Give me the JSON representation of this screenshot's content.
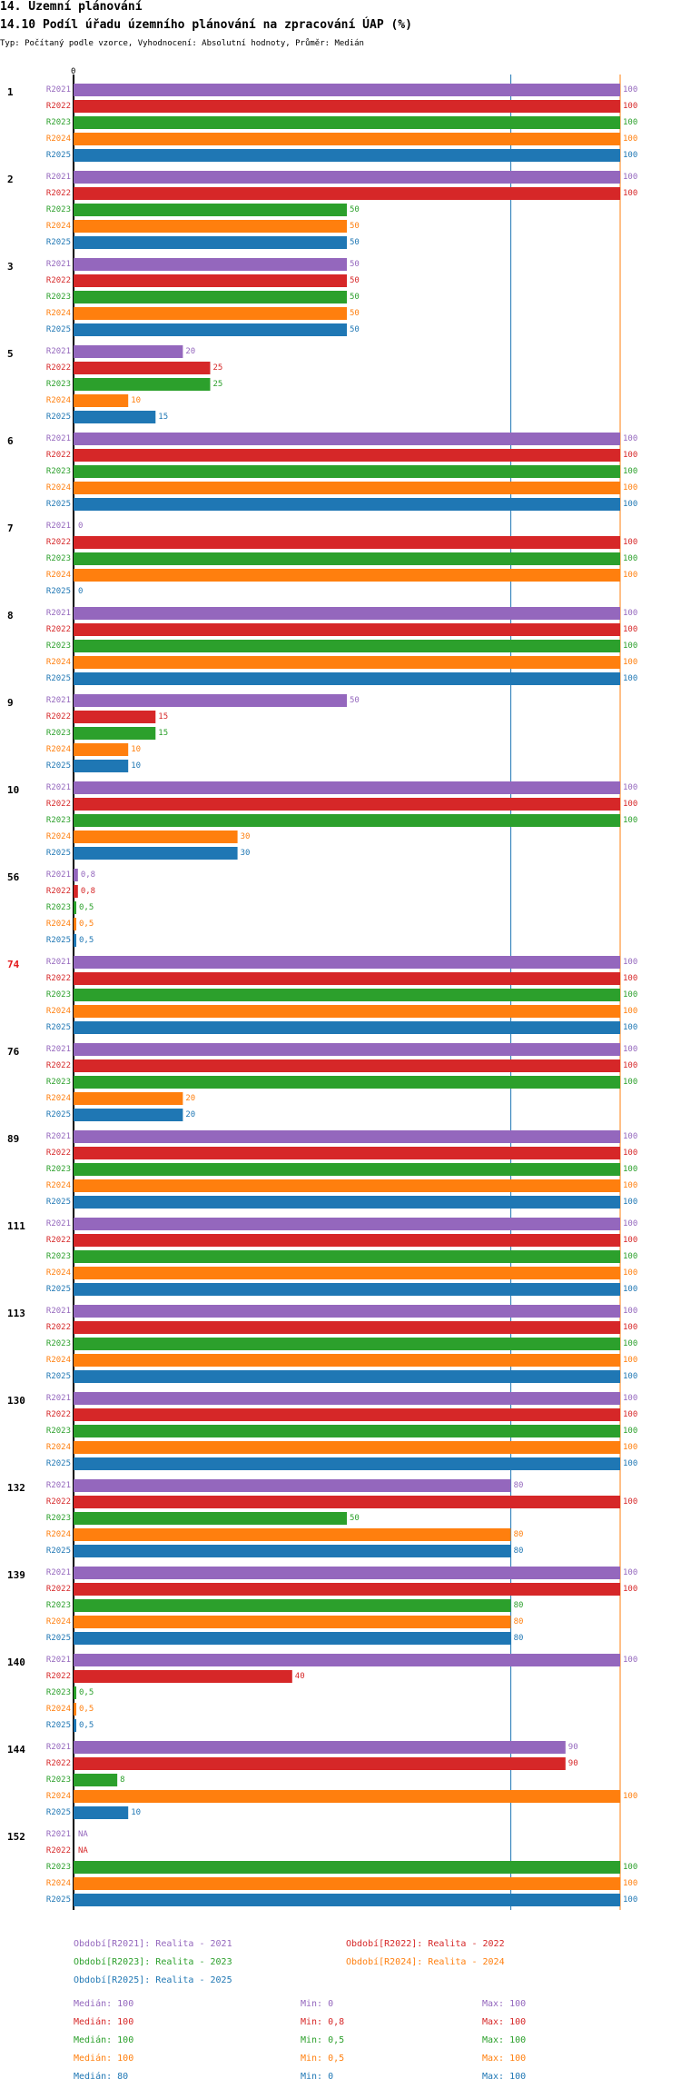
{
  "header": {
    "section": "14. Územní plánování",
    "title": "14.10 Podíl úřadu územního plánování na zpracování ÚAP (%)",
    "subtitle": "Typ: Počítaný podle vzorce, Vyhodnocení: Absolutní hodnoty, Průměr: Medián"
  },
  "chart_data": {
    "type": "bar",
    "orientation": "horizontal",
    "axis_zero_label": "0",
    "xlim": [
      0,
      100
    ],
    "reference_lines": [
      {
        "name": "median-R2025",
        "value": 80,
        "color": "#1f77b4"
      },
      {
        "name": "median-R2024",
        "value": 100,
        "color": "#ff7f0e"
      }
    ],
    "series": [
      {
        "name": "R2021",
        "color": "#9467bd"
      },
      {
        "name": "R2022",
        "color": "#d62728"
      },
      {
        "name": "R2023",
        "color": "#2ca02c"
      },
      {
        "name": "R2024",
        "color": "#ff7f0e"
      },
      {
        "name": "R2025",
        "color": "#1f77b4"
      }
    ],
    "groups": [
      {
        "label": "1",
        "highlight": false,
        "values": [
          100,
          100,
          100,
          100,
          100
        ],
        "labels": [
          "100",
          "100",
          "100",
          "100",
          "100"
        ]
      },
      {
        "label": "2",
        "highlight": false,
        "values": [
          100,
          100,
          50,
          50,
          50
        ],
        "labels": [
          "100",
          "100",
          "50",
          "50",
          "50"
        ]
      },
      {
        "label": "3",
        "highlight": false,
        "values": [
          50,
          50,
          50,
          50,
          50
        ],
        "labels": [
          "50",
          "50",
          "50",
          "50",
          "50"
        ]
      },
      {
        "label": "5",
        "highlight": false,
        "values": [
          20,
          25,
          25,
          10,
          15
        ],
        "labels": [
          "20",
          "25",
          "25",
          "10",
          "15"
        ]
      },
      {
        "label": "6",
        "highlight": false,
        "values": [
          100,
          100,
          100,
          100,
          100
        ],
        "labels": [
          "100",
          "100",
          "100",
          "100",
          "100"
        ]
      },
      {
        "label": "7",
        "highlight": false,
        "values": [
          0,
          100,
          100,
          100,
          0
        ],
        "labels": [
          "0",
          "100",
          "100",
          "100",
          "0"
        ]
      },
      {
        "label": "8",
        "highlight": false,
        "values": [
          100,
          100,
          100,
          100,
          100
        ],
        "labels": [
          "100",
          "100",
          "100",
          "100",
          "100"
        ]
      },
      {
        "label": "9",
        "highlight": false,
        "values": [
          50,
          15,
          15,
          10,
          10
        ],
        "labels": [
          "50",
          "15",
          "15",
          "10",
          "10"
        ]
      },
      {
        "label": "10",
        "highlight": false,
        "values": [
          100,
          100,
          100,
          30,
          30
        ],
        "labels": [
          "100",
          "100",
          "100",
          "30",
          "30"
        ]
      },
      {
        "label": "56",
        "highlight": false,
        "values": [
          0.8,
          0.8,
          0.5,
          0.5,
          0.5
        ],
        "labels": [
          "0,8",
          "0,8",
          "0,5",
          "0,5",
          "0,5"
        ]
      },
      {
        "label": "74",
        "highlight": true,
        "values": [
          100,
          100,
          100,
          100,
          100
        ],
        "labels": [
          "100",
          "100",
          "100",
          "100",
          "100"
        ]
      },
      {
        "label": "76",
        "highlight": false,
        "values": [
          100,
          100,
          100,
          20,
          20
        ],
        "labels": [
          "100",
          "100",
          "100",
          "20",
          "20"
        ]
      },
      {
        "label": "89",
        "highlight": false,
        "values": [
          100,
          100,
          100,
          100,
          100
        ],
        "labels": [
          "100",
          "100",
          "100",
          "100",
          "100"
        ]
      },
      {
        "label": "111",
        "highlight": false,
        "values": [
          100,
          100,
          100,
          100,
          100
        ],
        "labels": [
          "100",
          "100",
          "100",
          "100",
          "100"
        ]
      },
      {
        "label": "113",
        "highlight": false,
        "values": [
          100,
          100,
          100,
          100,
          100
        ],
        "labels": [
          "100",
          "100",
          "100",
          "100",
          "100"
        ]
      },
      {
        "label": "130",
        "highlight": false,
        "values": [
          100,
          100,
          100,
          100,
          100
        ],
        "labels": [
          "100",
          "100",
          "100",
          "100",
          "100"
        ]
      },
      {
        "label": "132",
        "highlight": false,
        "values": [
          80,
          100,
          50,
          80,
          80
        ],
        "labels": [
          "80",
          "100",
          "50",
          "80",
          "80"
        ]
      },
      {
        "label": "139",
        "highlight": false,
        "values": [
          100,
          100,
          80,
          80,
          80
        ],
        "labels": [
          "100",
          "100",
          "80",
          "80",
          "80"
        ]
      },
      {
        "label": "140",
        "highlight": false,
        "values": [
          100,
          40,
          0.5,
          0.5,
          0.5
        ],
        "labels": [
          "100",
          "40",
          "0,5",
          "0,5",
          "0,5"
        ]
      },
      {
        "label": "144",
        "highlight": false,
        "values": [
          90,
          90,
          8,
          100,
          10
        ],
        "labels": [
          "90",
          "90",
          "8",
          "100",
          "10"
        ]
      },
      {
        "label": "152",
        "highlight": false,
        "values": [
          null,
          null,
          100,
          100,
          100
        ],
        "labels": [
          "NA",
          "NA",
          "100",
          "100",
          "100"
        ]
      }
    ],
    "legend": [
      "Období[R2021]: Realita - 2021",
      "Období[R2022]: Realita - 2022",
      "Období[R2023]: Realita - 2023",
      "Období[R2024]: Realita - 2024",
      "Období[R2025]: Realita - 2025"
    ],
    "stats": [
      {
        "median": "Medián: 100",
        "min": "Min: 0",
        "max": "Max: 100"
      },
      {
        "median": "Medián: 100",
        "min": "Min: 0,8",
        "max": "Max: 100"
      },
      {
        "median": "Medián: 100",
        "min": "Min: 0,5",
        "max": "Max: 100"
      },
      {
        "median": "Medián: 100",
        "min": "Min: 0,5",
        "max": "Max: 100"
      },
      {
        "median": "Medián: 80",
        "min": "Min: 0",
        "max": "Max: 100"
      }
    ]
  }
}
